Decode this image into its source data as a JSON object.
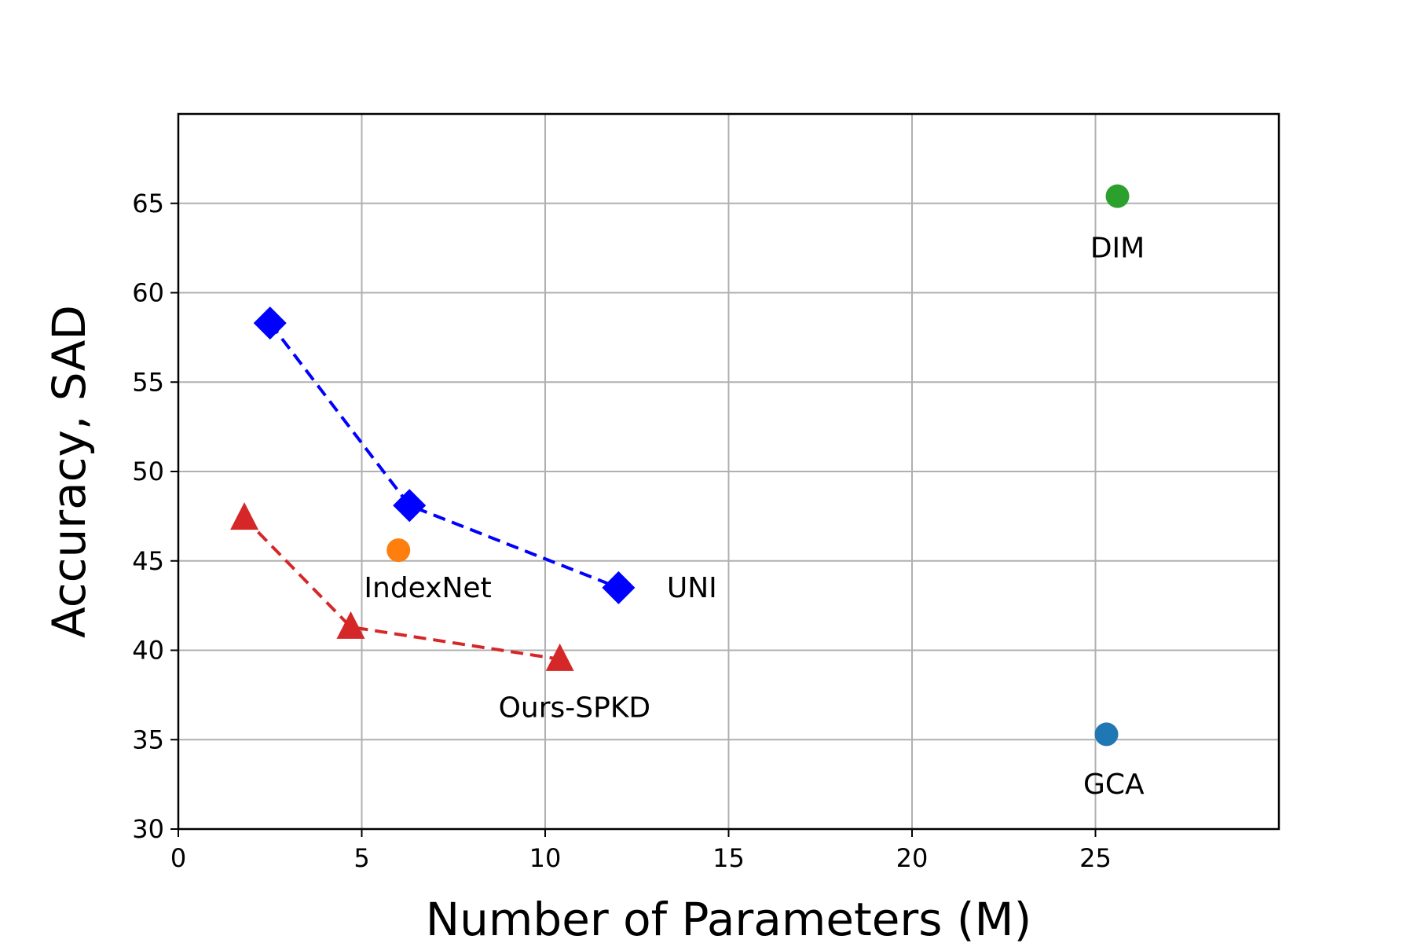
{
  "chart_data": {
    "type": "scatter",
    "title": "",
    "xlabel": "Number of Parameters (M)",
    "ylabel": "Accuracy, SAD",
    "xlim": [
      0,
      30
    ],
    "ylim": [
      30,
      70
    ],
    "xticks": [
      0,
      5,
      10,
      15,
      20,
      25
    ],
    "yticks": [
      30,
      35,
      40,
      45,
      50,
      55,
      60,
      65
    ],
    "grid": true,
    "colors": {
      "uni": "#0000ff",
      "ours": "#d62728",
      "indexnet": "#ff7f0e",
      "dim": "#2ca02c",
      "gca": "#1f77b4"
    },
    "series": [
      {
        "key": "uni",
        "marker": "diamond",
        "line": "dashed",
        "points": [
          {
            "x": 2.5,
            "y": 58.3
          },
          {
            "x": 6.3,
            "y": 48.1
          },
          {
            "x": 12.0,
            "y": 43.5
          }
        ]
      },
      {
        "key": "ours",
        "marker": "triangle",
        "line": "dashed",
        "points": [
          {
            "x": 1.8,
            "y": 47.4
          },
          {
            "x": 4.7,
            "y": 41.3
          },
          {
            "x": 10.4,
            "y": 39.5
          }
        ]
      },
      {
        "key": "indexnet",
        "marker": "circle",
        "line": "none",
        "points": [
          {
            "x": 6.0,
            "y": 45.6
          }
        ]
      },
      {
        "key": "dim",
        "marker": "circle",
        "line": "none",
        "points": [
          {
            "x": 25.6,
            "y": 65.4
          }
        ]
      },
      {
        "key": "gca",
        "marker": "circle",
        "line": "none",
        "points": [
          {
            "x": 25.3,
            "y": 35.3
          }
        ]
      }
    ],
    "annotations": [
      {
        "text": "UNI",
        "x": 14.0,
        "y": 43.5
      },
      {
        "text": "Ours-SPKD",
        "x": 10.8,
        "y": 36.8
      },
      {
        "text": "IndexNet",
        "x": 6.8,
        "y": 43.5
      },
      {
        "text": "DIM",
        "x": 25.6,
        "y": 62.5
      },
      {
        "text": "GCA",
        "x": 25.5,
        "y": 32.5
      }
    ]
  }
}
